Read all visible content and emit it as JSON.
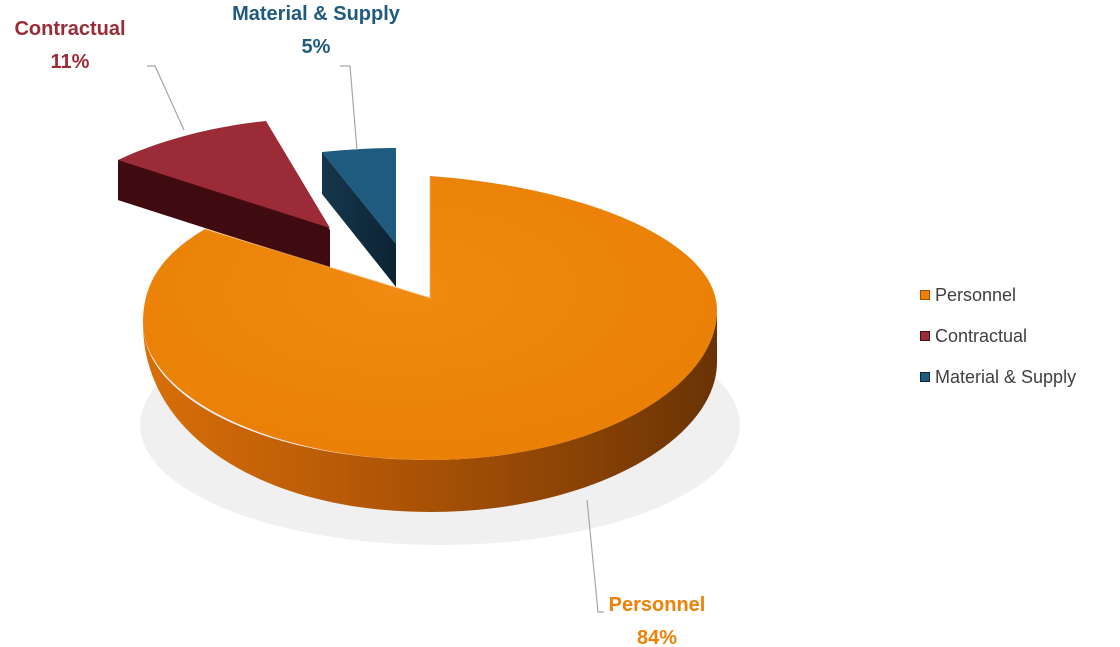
{
  "chart_data": {
    "type": "pie",
    "style": "3d-exploded",
    "categories": [
      "Personnel",
      "Contractual",
      "Material & Supply"
    ],
    "values": [
      84,
      11,
      5
    ],
    "labels": [
      {
        "name": "Personnel",
        "percent": "84%"
      },
      {
        "name": "Contractual",
        "percent": "11%"
      },
      {
        "name": "Material & Supply",
        "percent": "5%"
      }
    ],
    "colors": {
      "Personnel": "#ee8106",
      "Contractual": "#9b2b36",
      "Material & Supply": "#1f5a7f"
    },
    "legend_position": "right",
    "title": ""
  }
}
